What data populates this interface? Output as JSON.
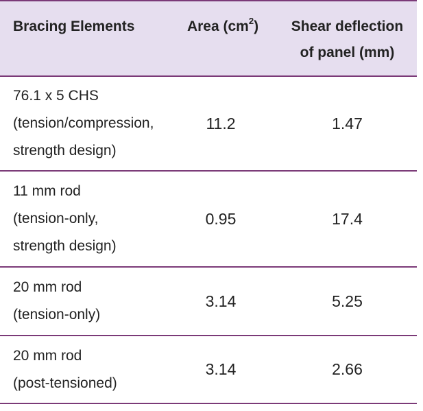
{
  "table": {
    "headers": {
      "elements": "Bracing Elements",
      "area_prefix": "Area (cm",
      "area_sup": "2",
      "area_suffix": ")",
      "shear_line1": "Shear deflection",
      "shear_line2": "of panel (mm)"
    },
    "rows": [
      {
        "element_lines": [
          "76.1 x 5 CHS",
          "(tension/compression,",
          "strength design)"
        ],
        "area": "11.2",
        "shear": "1.47"
      },
      {
        "element_lines": [
          "11 mm rod",
          "(tension-only,",
          "strength design)"
        ],
        "area": "0.95",
        "shear": "17.4"
      },
      {
        "element_lines": [
          "20 mm rod",
          "(tension-only)"
        ],
        "area": "3.14",
        "shear": "5.25"
      },
      {
        "element_lines": [
          "20 mm rod",
          "(post-tensioned)"
        ],
        "area": "3.14",
        "shear": "2.66"
      }
    ]
  },
  "colors": {
    "header_background": "#e6deef",
    "rule": "#7b3a78",
    "text": "#222222"
  }
}
